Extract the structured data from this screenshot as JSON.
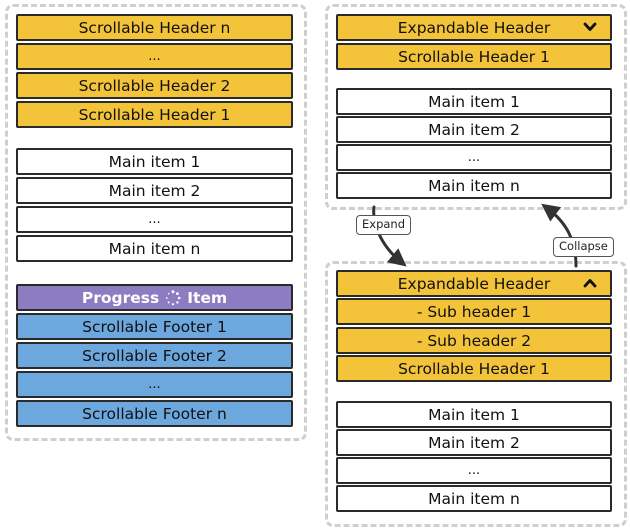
{
  "left_panel": {
    "headers": [
      "Scrollable Header n",
      "...",
      "Scrollable Header 2",
      "Scrollable Header 1"
    ],
    "main_items": [
      "Main item 1",
      "Main item 2",
      "...",
      "Main item n"
    ],
    "progress": {
      "label_before": "Progress",
      "label_after": "Item",
      "spinner_icon": "loading-spinner-icon"
    },
    "footers": [
      "Scrollable Footer 1",
      "Scrollable Footer 2",
      "...",
      "Scrollable Footer n"
    ]
  },
  "collapsed_panel": {
    "expandable_header": "Expandable Header",
    "toggle_icon": "chevron-down-icon",
    "headers": [
      "Scrollable Header 1"
    ],
    "main_items": [
      "Main item 1",
      "Main item 2",
      "...",
      "Main item n"
    ]
  },
  "expanded_panel": {
    "expandable_header": "Expandable Header",
    "toggle_icon": "chevron-up-icon",
    "sub_headers": [
      "- Sub header 1",
      "- Sub header 2"
    ],
    "headers": [
      "Scrollable Header 1"
    ],
    "main_items": [
      "Main item 1",
      "Main item 2",
      "...",
      "Main item n"
    ]
  },
  "transitions": {
    "expand_label": "Expand",
    "collapse_label": "Collapse"
  },
  "colors": {
    "header": "#f3c33a",
    "main": "#ffffff",
    "footer": "#6ca7de",
    "progress": "#8e7cc3",
    "border": "#2a2a2a"
  }
}
